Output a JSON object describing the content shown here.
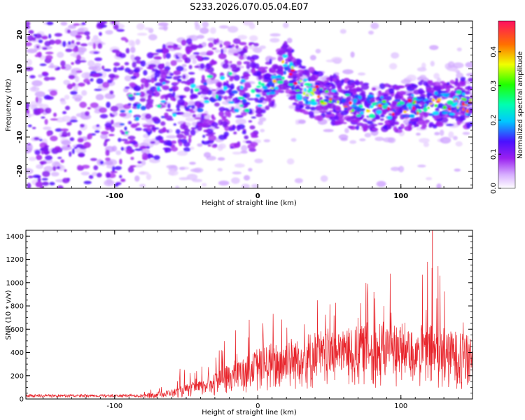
{
  "title": "S233.2026.070.05.04.E07",
  "chart_data": [
    {
      "type": "heatmap",
      "panel": "spectrogram",
      "xlabel": "Height of straight line (km)",
      "ylabel": "Frequency (Hz)",
      "xlim": [
        -162,
        150
      ],
      "ylim": [
        -25,
        24
      ],
      "xticks": [
        -100,
        0,
        100
      ],
      "yticks": [
        -20,
        -10,
        0,
        10,
        20
      ],
      "colorbar": {
        "label": "Normalized spectral amplitude",
        "range": [
          0.0,
          0.49
        ],
        "ticks": [
          0.0,
          0.1,
          0.2,
          0.3,
          0.4
        ]
      },
      "ridge": {
        "description": "dominant frequency trace",
        "x": [
          -90,
          -60,
          -30,
          0,
          10,
          20,
          30,
          45,
          60,
          80,
          100,
          120,
          145
        ],
        "y": [
          -4,
          2,
          3,
          2,
          6,
          11,
          4,
          2,
          0,
          -1,
          -2,
          0,
          0
        ]
      }
    },
    {
      "type": "line",
      "panel": "snr",
      "xlabel": "Height of straight line (km)",
      "ylabel": "SNR (10 * v/v)",
      "xlim": [
        -162,
        150
      ],
      "ylim": [
        0,
        1450
      ],
      "xticks": [
        -100,
        0,
        100
      ],
      "yticks": [
        0,
        200,
        400,
        600,
        800,
        1000,
        1200,
        1400
      ],
      "color": "#e8232a",
      "envelope": {
        "x": [
          -162,
          -80,
          -60,
          -40,
          -20,
          0,
          20,
          40,
          60,
          80,
          100,
          120,
          150
        ],
        "median": [
          20,
          30,
          60,
          120,
          220,
          320,
          380,
          420,
          450,
          480,
          470,
          460,
          420
        ],
        "peak": [
          40,
          60,
          250,
          300,
          550,
          760,
          820,
          900,
          1000,
          1120,
          1160,
          1450,
          1000
        ]
      }
    }
  ]
}
